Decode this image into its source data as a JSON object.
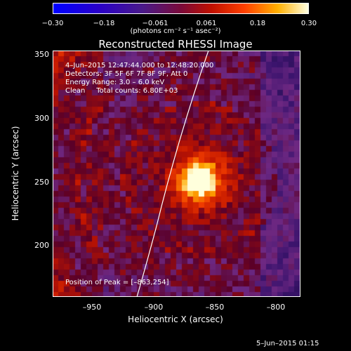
{
  "colorbar": {
    "ticks": [
      "−0.30",
      "−0.18",
      "−0.061",
      "0.061",
      "0.18",
      "0.30"
    ],
    "unit": "(photons cm⁻² s⁻¹ asec⁻²)"
  },
  "title": "Reconstructed RHESSI Image",
  "annotations": {
    "time": "4–Jun–2015 12:47:44.000 to 12:48:20.000",
    "detectors": "Detectors: 3F 5F 6F 7F 8F 9F, Att 0",
    "energy": "Energy Range: 3.0 – 6.0 keV",
    "clean": "Clean     Total counts: 6.80E+03",
    "peak": "Position of Peak = [–863,254]"
  },
  "axes": {
    "ylabel": "Heliocentric Y (arcsec)",
    "xlabel": "Heliocentric X (arcsec)",
    "yticks": [
      "350",
      "300",
      "250",
      "200"
    ],
    "xticks": [
      "–950",
      "–900",
      "–850",
      "–800"
    ]
  },
  "footer": "5–Jun–2015 01:15"
}
